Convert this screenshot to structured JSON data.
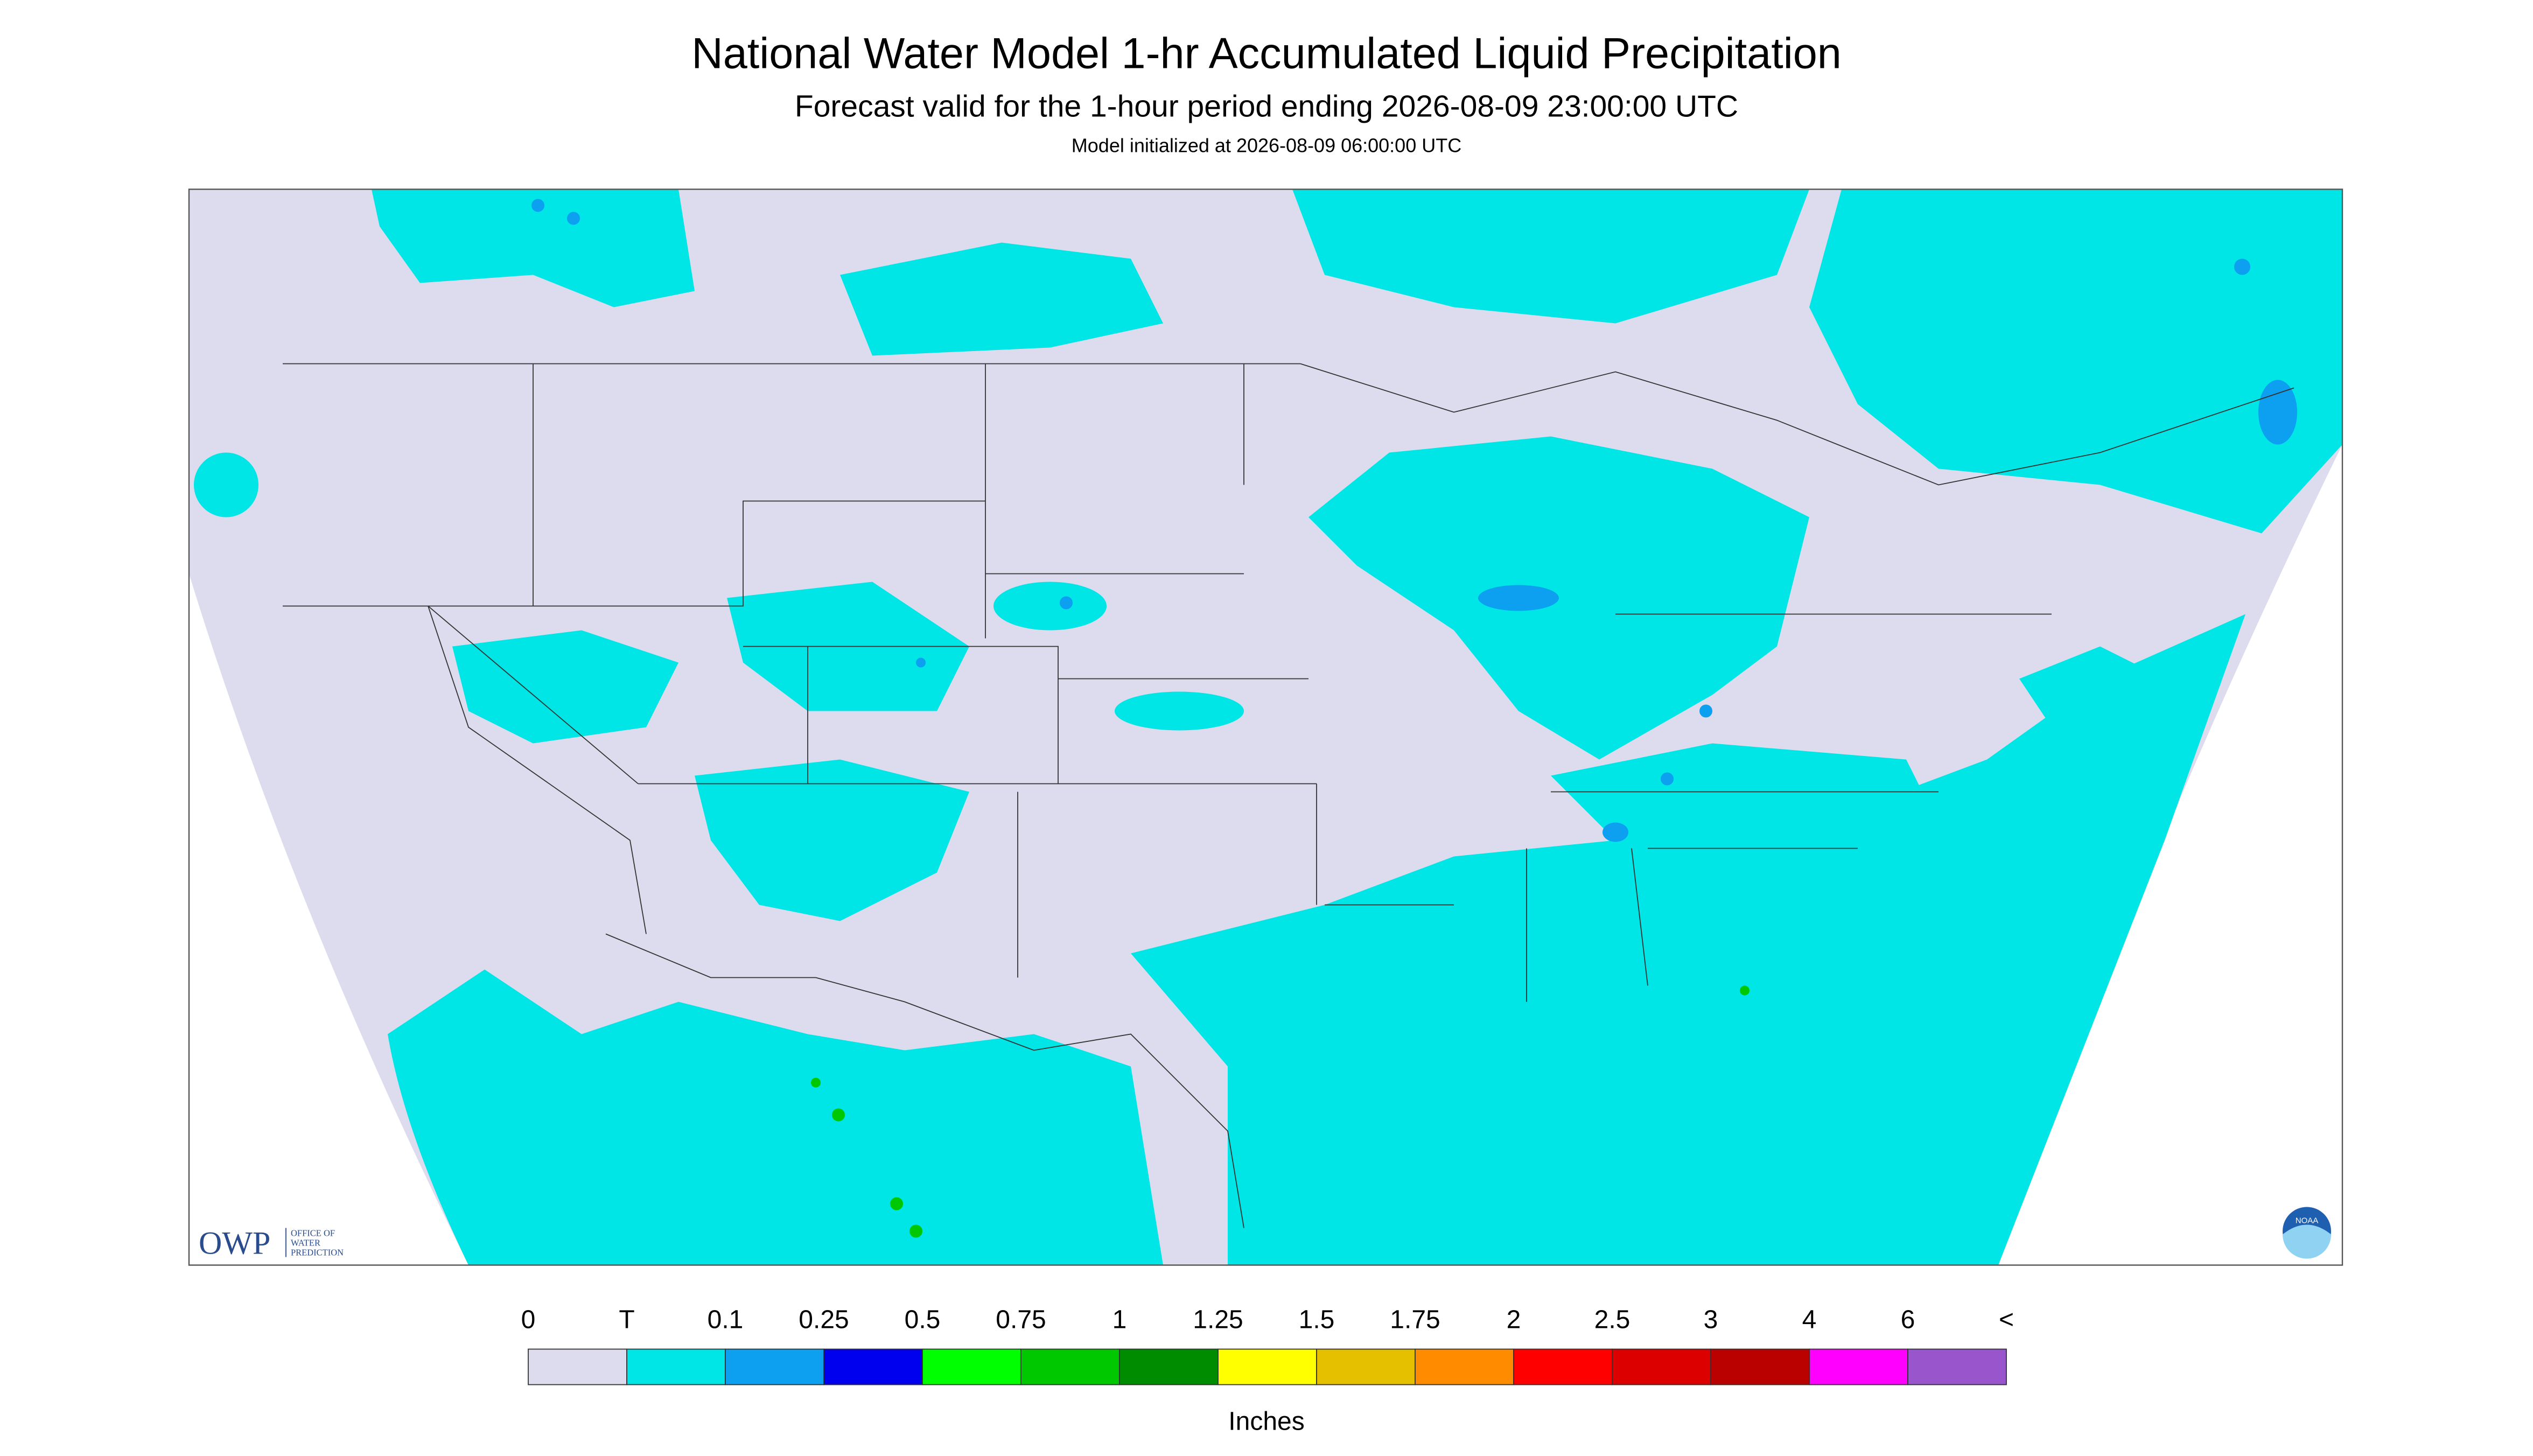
{
  "header": {
    "title": "National Water Model 1-hr Accumulated Liquid Precipitation",
    "subtitle": "Forecast valid for the 1-hour period ending 2026-08-09 23:00:00 UTC",
    "initialized": "Model initialized at 2026-08-09 06:00:00 UTC"
  },
  "legend": {
    "labels": [
      "0",
      "T",
      "0.1",
      "0.25",
      "0.5",
      "0.75",
      "1",
      "1.25",
      "1.5",
      "1.75",
      "2",
      "2.5",
      "3",
      "4",
      "6",
      "<"
    ],
    "colors": [
      "#dcdcee",
      "#00e5e5",
      "#0d9ff0",
      "#0000ee",
      "#00ff00",
      "#00c800",
      "#008c00",
      "#ffff00",
      "#e5c000",
      "#ff8c00",
      "#ff0000",
      "#dd0000",
      "#bb0000",
      "#ff00ff",
      "#9955cc"
    ],
    "unit": "Inches"
  },
  "logo": {
    "owp": "OWP",
    "office": [
      "OFFICE OF",
      "WATER",
      "PREDICTION"
    ],
    "noaa": "NOAA"
  }
}
